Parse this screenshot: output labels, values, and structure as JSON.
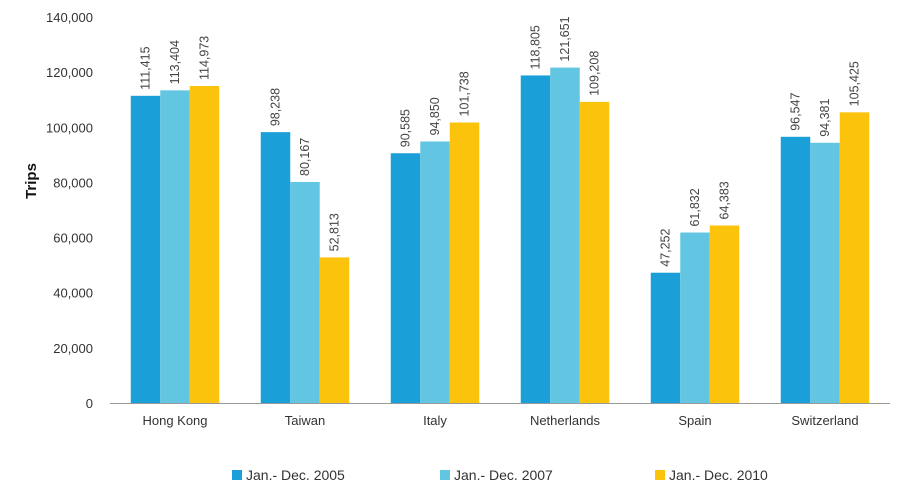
{
  "chart_data": {
    "type": "bar",
    "title": "",
    "xlabel": "",
    "ylabel": "Trips",
    "ylim": [
      0,
      140000
    ],
    "yticks": [
      0,
      20000,
      40000,
      60000,
      80000,
      100000,
      120000,
      140000
    ],
    "ytick_labels": [
      "0",
      "20,000",
      "40,000",
      "60,000",
      "80,000",
      "100,000",
      "120,000",
      "140,000"
    ],
    "grid": false,
    "legend_position": "bottom",
    "categories": [
      "Hong Kong",
      "Taiwan",
      "Italy",
      "Netherlands",
      "Spain",
      "Switzerland"
    ],
    "series": [
      {
        "name": "Jan.- Dec. 2005",
        "color": "#1a9fd9",
        "values": [
          111415,
          98238,
          90585,
          118805,
          47252,
          96547
        ],
        "labels": [
          "111,415",
          "98,238",
          "90,585",
          "118,805",
          "47,252",
          "96,547"
        ]
      },
      {
        "name": "Jan.- Dec. 2007",
        "color": "#62c6e2",
        "values": [
          113404,
          80167,
          94850,
          121651,
          61832,
          94381
        ],
        "labels": [
          "113,404",
          "80,167",
          "94,850",
          "121,651",
          "61,832",
          "94,381"
        ]
      },
      {
        "name": "Jan.- Dec. 2010",
        "color": "#fcc30d",
        "values": [
          114973,
          52813,
          101738,
          109208,
          64383,
          105425
        ],
        "labels": [
          "114,973",
          "52,813",
          "101,738",
          "109,208",
          "64,383",
          "105,425"
        ]
      }
    ]
  }
}
